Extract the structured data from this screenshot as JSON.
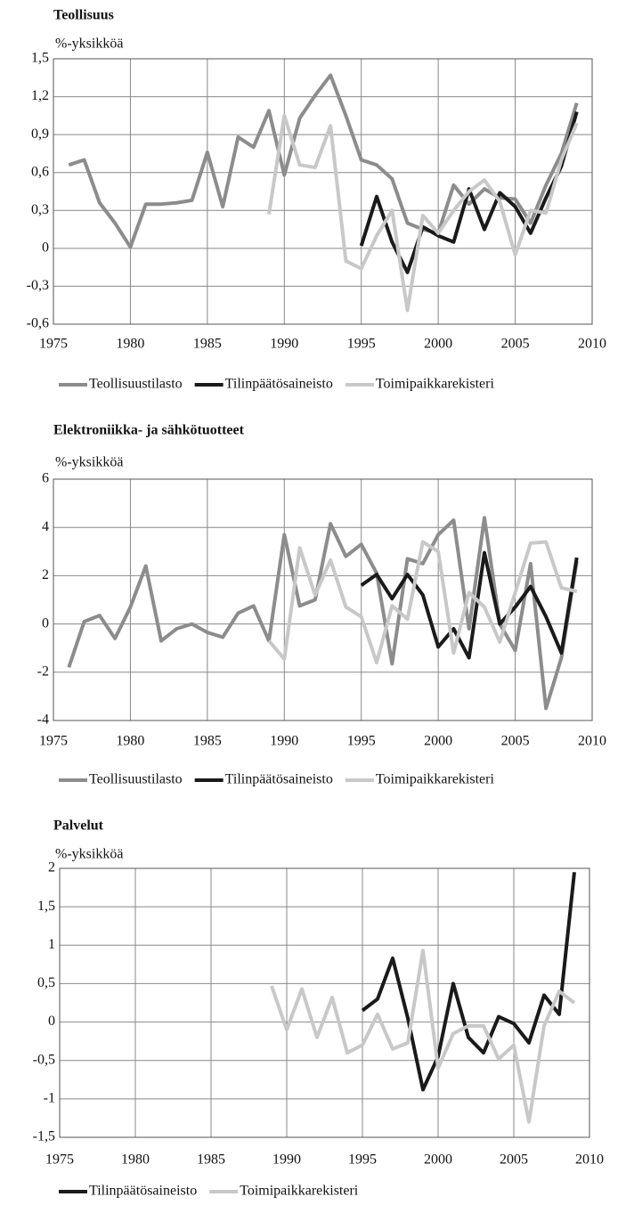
{
  "chart_data": [
    {
      "type": "line",
      "title": "Teollisuus",
      "ylabel": "%-yksikköä",
      "x": [
        1976,
        1977,
        1978,
        1979,
        1980,
        1981,
        1982,
        1983,
        1984,
        1985,
        1986,
        1987,
        1988,
        1989,
        1990,
        1991,
        1992,
        1993,
        1994,
        1995,
        1996,
        1997,
        1998,
        1999,
        2000,
        2001,
        2002,
        2003,
        2004,
        2005,
        2006,
        2007,
        2008,
        2009
      ],
      "xlim": [
        1975,
        2010
      ],
      "xticks": [
        1975,
        1980,
        1985,
        1990,
        1995,
        2000,
        2005,
        2010
      ],
      "ylim": [
        -0.6,
        1.5
      ],
      "yticks": [
        {
          "value": 1.5,
          "label": "1,5"
        },
        {
          "value": 1.2,
          "label": "1,2"
        },
        {
          "value": 0.9,
          "label": "0,9"
        },
        {
          "value": 0.6,
          "label": "0,6"
        },
        {
          "value": 0.3,
          "label": "0,3"
        },
        0,
        {
          "value": -0.3,
          "label": "-0,3"
        },
        {
          "value": -0.6,
          "label": "-0,6"
        }
      ],
      "grid": true,
      "series": [
        {
          "name": "Teollisuustilasto",
          "color": "#8c8c8c",
          "values": [
            0.66,
            0.7,
            0.36,
            0.2,
            0.01,
            0.35,
            0.35,
            0.36,
            0.38,
            0.76,
            0.33,
            0.88,
            0.8,
            1.09,
            0.58,
            1.03,
            1.21,
            1.37,
            1.05,
            0.7,
            0.66,
            0.55,
            0.2,
            0.15,
            0.12,
            0.5,
            0.35,
            0.47,
            0.4,
            0.39,
            0.2,
            0.5,
            0.75,
            1.15
          ]
        },
        {
          "name": "Tilinpäätösaineisto",
          "color": "#1a1a1a",
          "values": [
            null,
            null,
            null,
            null,
            null,
            null,
            null,
            null,
            null,
            null,
            null,
            null,
            null,
            null,
            null,
            null,
            null,
            null,
            null,
            0.02,
            0.41,
            0.05,
            -0.19,
            0.17,
            0.1,
            0.05,
            0.47,
            0.15,
            0.44,
            0.33,
            0.12,
            0.4,
            0.65,
            1.08
          ]
        },
        {
          "name": "Toimipaikkarekisteri",
          "color": "#c8c8c8",
          "values": [
            null,
            null,
            null,
            null,
            null,
            null,
            null,
            null,
            null,
            null,
            null,
            null,
            null,
            0.27,
            1.05,
            0.66,
            0.64,
            0.97,
            -0.1,
            -0.16,
            0.1,
            0.3,
            -0.49,
            0.26,
            0.12,
            0.3,
            0.45,
            0.54,
            0.37,
            -0.05,
            0.3,
            0.28,
            0.7,
            0.99
          ]
        }
      ]
    },
    {
      "type": "line",
      "title": "Elektroniikka- ja sähkötuotteet",
      "ylabel": "%-yksikköä",
      "x": [
        1976,
        1977,
        1978,
        1979,
        1980,
        1981,
        1982,
        1983,
        1984,
        1985,
        1986,
        1987,
        1988,
        1989,
        1990,
        1991,
        1992,
        1993,
        1994,
        1995,
        1996,
        1997,
        1998,
        1999,
        2000,
        2001,
        2002,
        2003,
        2004,
        2005,
        2006,
        2007,
        2008,
        2009
      ],
      "xlim": [
        1975,
        2010
      ],
      "xticks": [
        1975,
        1980,
        1985,
        1990,
        1995,
        2000,
        2005,
        2010
      ],
      "ylim": [
        -4,
        6
      ],
      "yticks": [
        6,
        4,
        2,
        0,
        -2,
        -4
      ],
      "grid": true,
      "series": [
        {
          "name": "Teollisuustilasto",
          "color": "#8c8c8c",
          "values": [
            -1.8,
            0.1,
            0.35,
            -0.6,
            0.7,
            2.4,
            -0.7,
            -0.2,
            0.0,
            -0.35,
            -0.55,
            0.45,
            0.75,
            -0.7,
            3.7,
            0.75,
            1.0,
            4.15,
            2.8,
            3.3,
            2.1,
            -1.65,
            2.7,
            2.5,
            3.7,
            4.3,
            -0.2,
            4.4,
            0.0,
            -1.1,
            2.5,
            -3.5,
            -1.4,
            2.6
          ]
        },
        {
          "name": "Tilinpäätösaineisto",
          "color": "#1a1a1a",
          "values": [
            null,
            null,
            null,
            null,
            null,
            null,
            null,
            null,
            null,
            null,
            null,
            null,
            null,
            null,
            null,
            null,
            null,
            null,
            null,
            1.6,
            2.05,
            1.05,
            2.05,
            1.2,
            -0.95,
            -0.2,
            -1.4,
            2.95,
            0.0,
            0.7,
            1.55,
            0.3,
            -1.2,
            2.75
          ]
        },
        {
          "name": "Toimipaikkarekisteri",
          "color": "#c8c8c8",
          "values": [
            null,
            null,
            null,
            null,
            null,
            null,
            null,
            null,
            null,
            null,
            null,
            null,
            null,
            -0.7,
            -1.45,
            3.15,
            1.2,
            2.65,
            0.7,
            0.3,
            -1.6,
            0.75,
            0.2,
            3.4,
            3.0,
            -1.2,
            1.3,
            0.7,
            -0.75,
            1.3,
            3.35,
            3.4,
            1.5,
            1.35
          ]
        }
      ]
    },
    {
      "type": "line",
      "title": "Palvelut",
      "ylabel": "%-yksikköä",
      "x": [
        1976,
        1977,
        1978,
        1979,
        1980,
        1981,
        1982,
        1983,
        1984,
        1985,
        1986,
        1987,
        1988,
        1989,
        1990,
        1991,
        1992,
        1993,
        1994,
        1995,
        1996,
        1997,
        1998,
        1999,
        2000,
        2001,
        2002,
        2003,
        2004,
        2005,
        2006,
        2007,
        2008,
        2009
      ],
      "xlim": [
        1975,
        2010
      ],
      "xticks": [
        1975,
        1980,
        1985,
        1990,
        1995,
        2000,
        2005,
        2010
      ],
      "ylim": [
        -1.5,
        2
      ],
      "yticks": [
        2,
        {
          "value": 1.5,
          "label": "1,5"
        },
        1,
        {
          "value": 0.5,
          "label": "0,5"
        },
        0,
        {
          "value": -0.5,
          "label": "-0,5"
        },
        -1,
        {
          "value": -1.5,
          "label": "-1,5"
        }
      ],
      "grid": true,
      "series": [
        {
          "name": "Tilinpäätösaineisto",
          "color": "#1a1a1a",
          "values": [
            null,
            null,
            null,
            null,
            null,
            null,
            null,
            null,
            null,
            null,
            null,
            null,
            null,
            null,
            null,
            null,
            null,
            null,
            null,
            0.15,
            0.3,
            0.83,
            0.05,
            -0.88,
            -0.45,
            0.5,
            -0.2,
            -0.4,
            0.07,
            -0.02,
            -0.27,
            0.35,
            0.1,
            1.95
          ]
        },
        {
          "name": "Toimipaikkarekisteri",
          "color": "#c8c8c8",
          "values": [
            null,
            null,
            null,
            null,
            null,
            null,
            null,
            null,
            null,
            null,
            null,
            null,
            null,
            0.47,
            -0.1,
            0.43,
            -0.2,
            0.32,
            -0.4,
            -0.3,
            0.1,
            -0.35,
            -0.27,
            0.93,
            -0.6,
            -0.15,
            -0.05,
            -0.05,
            -0.48,
            -0.3,
            -1.3,
            -0.05,
            0.4,
            0.25
          ]
        }
      ]
    }
  ]
}
